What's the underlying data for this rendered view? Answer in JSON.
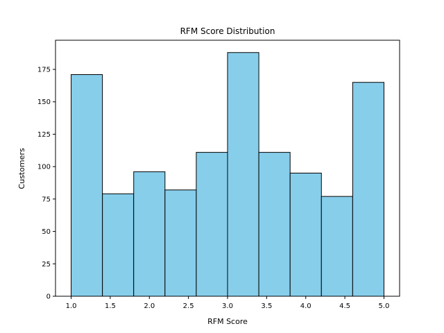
{
  "chart_data": {
    "type": "bar",
    "subtype": "histogram",
    "title": "RFM Score Distribution",
    "xlabel": "RFM Score",
    "ylabel": "Customers",
    "bin_edges": [
      1.0,
      1.4,
      1.8,
      2.2,
      2.6,
      3.0,
      3.4,
      3.8,
      4.2,
      4.6,
      5.0
    ],
    "values": [
      171,
      79,
      96,
      82,
      111,
      188,
      111,
      95,
      77,
      165
    ],
    "xlim": [
      0.8,
      5.2
    ],
    "ylim": [
      0,
      197.5
    ],
    "xticks": [
      1.0,
      1.5,
      2.0,
      2.5,
      3.0,
      3.5,
      4.0,
      4.5,
      5.0
    ],
    "xtick_labels": [
      "1.0",
      "1.5",
      "2.0",
      "2.5",
      "3.0",
      "3.5",
      "4.0",
      "4.5",
      "5.0"
    ],
    "yticks": [
      0,
      25,
      50,
      75,
      100,
      125,
      150,
      175
    ],
    "ytick_labels": [
      "0",
      "25",
      "50",
      "75",
      "100",
      "125",
      "150",
      "175"
    ],
    "grid": false,
    "legend": false,
    "colors": {
      "bar_fill": "#87CEEB",
      "bar_edge": "#000000",
      "axes": "#000000",
      "text": "#000000",
      "background": "#ffffff"
    }
  }
}
